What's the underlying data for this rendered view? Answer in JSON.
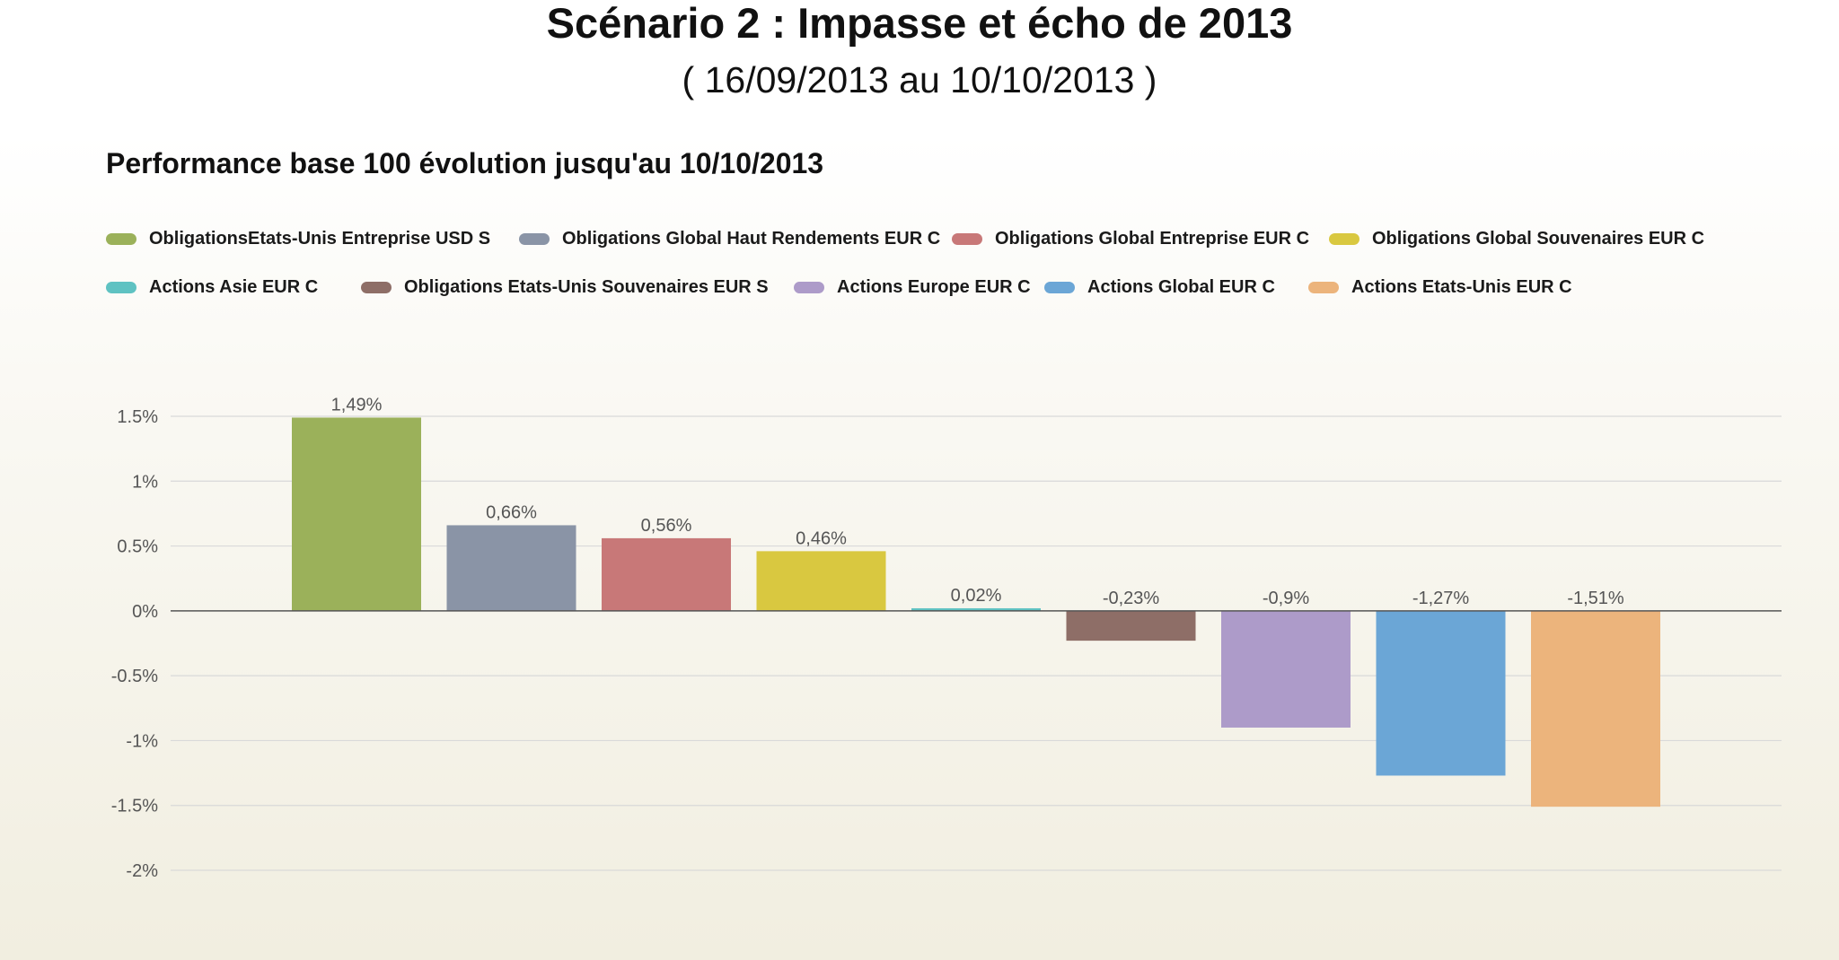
{
  "header": {
    "title": "Scénario 2 : Impasse et écho de 2013",
    "subtitle": "( 16/09/2013 au 10/10/2013 )"
  },
  "chart_data": {
    "type": "bar",
    "title": "Performance base 100 évolution jusqu'au 10/10/2013",
    "xlabel": "",
    "ylabel": "",
    "ylim": [
      -2,
      1.5
    ],
    "yticks": [
      {
        "value": 1.5,
        "label": "1.5%"
      },
      {
        "value": 1,
        "label": "1%"
      },
      {
        "value": 0.5,
        "label": "0.5%"
      },
      {
        "value": 0,
        "label": "0%"
      },
      {
        "value": -0.5,
        "label": "-0.5%"
      },
      {
        "value": -1,
        "label": "-1%"
      },
      {
        "value": -1.5,
        "label": "-1.5%"
      },
      {
        "value": -2,
        "label": "-2%"
      }
    ],
    "grid": true,
    "legend_position": "top",
    "series": [
      {
        "name": "ObligationsEtats-Unis Entreprise USD S",
        "value": 1.49,
        "label": "1,49%",
        "color": "#9bb15a"
      },
      {
        "name": "Obligations Global Haut Rendements EUR C",
        "value": 0.66,
        "label": "0,66%",
        "color": "#8a94a6"
      },
      {
        "name": "Obligations Global Entreprise EUR C",
        "value": 0.56,
        "label": "0,56%",
        "color": "#c87878"
      },
      {
        "name": "Obligations Global Souvenaires EUR C",
        "value": 0.46,
        "label": "0,46%",
        "color": "#d9c840"
      },
      {
        "name": "Actions Asie EUR C",
        "value": 0.02,
        "label": "0,02%",
        "color": "#5fc2c2"
      },
      {
        "name": "Obligations Etats-Unis Souvenaires EUR S",
        "value": -0.23,
        "label": "-0,23%",
        "color": "#8e6e67"
      },
      {
        "name": "Actions Europe EUR C",
        "value": -0.9,
        "label": "-0,9%",
        "color": "#ad9bc9"
      },
      {
        "name": "Actions Global EUR C",
        "value": -1.27,
        "label": "-1,27%",
        "color": "#6ba6d6"
      },
      {
        "name": "Actions Etats-Unis EUR C",
        "value": -1.51,
        "label": "-1,51%",
        "color": "#ecb47c"
      }
    ]
  }
}
